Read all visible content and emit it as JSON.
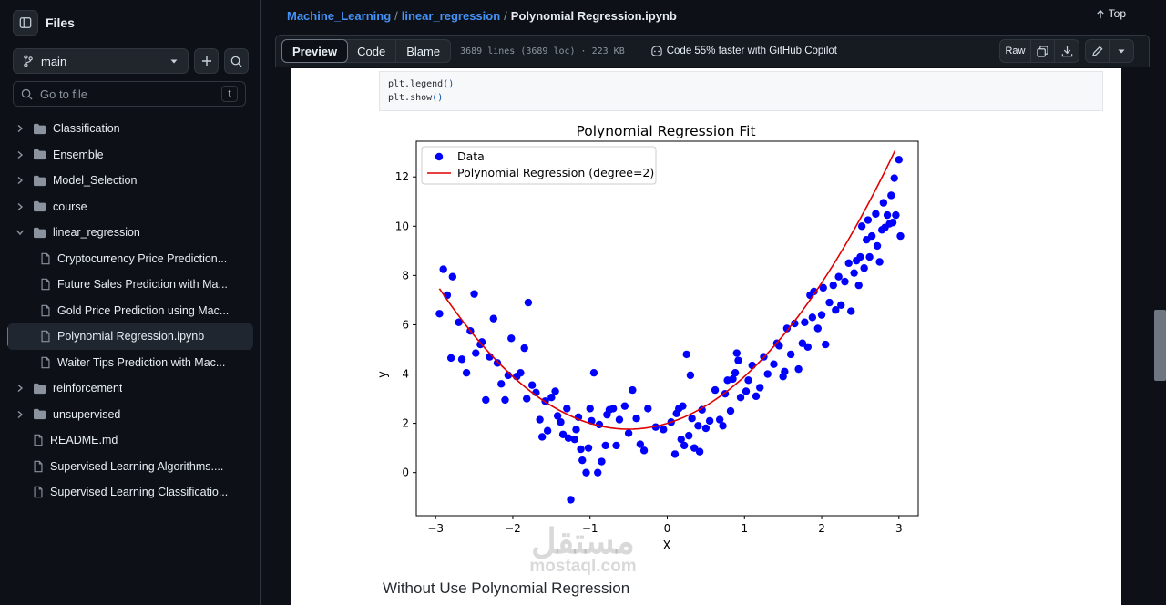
{
  "sidebar": {
    "title": "Files",
    "branch": "main",
    "go_to_file": "Go to file",
    "shortcut": "t",
    "tree": [
      {
        "label": "Classification",
        "type": "folder",
        "expanded": false,
        "depth": 0
      },
      {
        "label": "Ensemble",
        "type": "folder",
        "expanded": false,
        "depth": 0
      },
      {
        "label": "Model_Selection",
        "type": "folder",
        "expanded": false,
        "depth": 0
      },
      {
        "label": "course",
        "type": "folder",
        "expanded": false,
        "depth": 0
      },
      {
        "label": "linear_regression",
        "type": "folder",
        "expanded": true,
        "depth": 0
      },
      {
        "label": "Cryptocurrency Price Prediction...",
        "type": "file",
        "depth": 1
      },
      {
        "label": "Future Sales Prediction with Ma...",
        "type": "file",
        "depth": 1
      },
      {
        "label": "Gold Price Prediction using Mac...",
        "type": "file",
        "depth": 1
      },
      {
        "label": "Polynomial Regression.ipynb",
        "type": "file",
        "depth": 1,
        "active": true
      },
      {
        "label": "Waiter Tips Prediction with Mac...",
        "type": "file",
        "depth": 1
      },
      {
        "label": "reinforcement",
        "type": "folder",
        "expanded": false,
        "depth": 0
      },
      {
        "label": "unsupervised",
        "type": "folder",
        "expanded": false,
        "depth": 0
      },
      {
        "label": "README.md",
        "type": "file",
        "depth": 0
      },
      {
        "label": "Supervised Learning Algorithms....",
        "type": "file",
        "depth": 0
      },
      {
        "label": "Supervised Learning Classificatio...",
        "type": "file",
        "depth": 0
      }
    ]
  },
  "breadcrumb": {
    "repo": "Machine_Learning",
    "folder": "linear_regression",
    "file": "Polynomial Regression.ipynb",
    "separator": "/"
  },
  "top_label": "Top",
  "toolbar": {
    "tabs": [
      "Preview",
      "Code",
      "Blame"
    ],
    "meta": "3689 lines (3689 loc) · 223 KB",
    "copilot": "Code 55% faster with GitHub Copilot",
    "raw": "Raw"
  },
  "code": {
    "line1_name": "plt.legend",
    "line2_name": "plt.show",
    "parens": "()"
  },
  "next_heading": "Without Use Polynomial Regression",
  "watermark": {
    "arabic": "مستقل",
    "latin": "mostaql.com"
  },
  "colors": {
    "accent": "#4493f8",
    "data_points": "#0000ff",
    "fit_line": "#e00000"
  },
  "chart_data": {
    "type": "scatter",
    "title": "Polynomial Regression Fit",
    "xlabel": "X",
    "ylabel": "y",
    "xlim": [
      -3.25,
      3.25
    ],
    "ylim": [
      -1.75,
      13.45
    ],
    "xticks": [
      -3,
      -2,
      -1,
      0,
      1,
      2,
      3
    ],
    "xtick_labels": [
      "−3",
      "−2",
      "−1",
      "0",
      "1",
      "2",
      "3"
    ],
    "yticks": [
      0,
      2,
      4,
      6,
      8,
      10,
      12
    ],
    "ytick_labels": [
      "0",
      "2",
      "4",
      "6",
      "8",
      "10",
      "12"
    ],
    "legend_position": "top-left",
    "series": [
      {
        "name": "Data",
        "kind": "scatter",
        "color": "#0000ff",
        "points": [
          [
            -2.95,
            6.45
          ],
          [
            -2.9,
            8.25
          ],
          [
            -2.85,
            7.2
          ],
          [
            -2.8,
            4.65
          ],
          [
            -2.78,
            7.95
          ],
          [
            -2.7,
            6.1
          ],
          [
            -2.66,
            4.6
          ],
          [
            -2.6,
            4.05
          ],
          [
            -2.55,
            5.75
          ],
          [
            -2.5,
            7.25
          ],
          [
            -2.48,
            4.85
          ],
          [
            -2.42,
            5.2
          ],
          [
            -2.4,
            5.3
          ],
          [
            -2.35,
            2.95
          ],
          [
            -2.3,
            4.7
          ],
          [
            -2.25,
            6.25
          ],
          [
            -2.2,
            4.45
          ],
          [
            -2.15,
            3.6
          ],
          [
            -2.1,
            2.95
          ],
          [
            -2.06,
            3.95
          ],
          [
            -2.02,
            5.45
          ],
          [
            -1.95,
            3.9
          ],
          [
            -1.9,
            4.05
          ],
          [
            -1.85,
            5.05
          ],
          [
            -1.82,
            3.0
          ],
          [
            -1.8,
            6.9
          ],
          [
            -1.75,
            3.55
          ],
          [
            -1.7,
            3.25
          ],
          [
            -1.65,
            2.15
          ],
          [
            -1.62,
            1.45
          ],
          [
            -1.58,
            2.9
          ],
          [
            -1.55,
            1.7
          ],
          [
            -1.5,
            3.05
          ],
          [
            -1.45,
            3.3
          ],
          [
            -1.42,
            2.3
          ],
          [
            -1.38,
            2.05
          ],
          [
            -1.35,
            1.55
          ],
          [
            -1.3,
            2.6
          ],
          [
            -1.28,
            1.4
          ],
          [
            -1.25,
            -1.1
          ],
          [
            -1.2,
            1.35
          ],
          [
            -1.18,
            1.75
          ],
          [
            -1.15,
            2.25
          ],
          [
            -1.12,
            0.95
          ],
          [
            -1.1,
            0.5
          ],
          [
            -1.05,
            0.0
          ],
          [
            -1.02,
            1.0
          ],
          [
            -1.0,
            2.6
          ],
          [
            -0.98,
            2.1
          ],
          [
            -0.95,
            4.05
          ],
          [
            -0.9,
            0.0
          ],
          [
            -0.88,
            1.95
          ],
          [
            -0.85,
            0.45
          ],
          [
            -0.8,
            1.1
          ],
          [
            -0.78,
            2.35
          ],
          [
            -0.75,
            2.55
          ],
          [
            -0.7,
            2.6
          ],
          [
            -0.66,
            1.1
          ],
          [
            -0.62,
            2.15
          ],
          [
            -0.55,
            2.7
          ],
          [
            -0.5,
            1.6
          ],
          [
            -0.45,
            3.35
          ],
          [
            -0.4,
            2.2
          ],
          [
            -0.35,
            1.15
          ],
          [
            -0.3,
            0.9
          ],
          [
            -0.25,
            2.6
          ],
          [
            -0.15,
            1.85
          ],
          [
            -0.05,
            1.75
          ],
          [
            0.05,
            2.05
          ],
          [
            0.1,
            0.75
          ],
          [
            0.12,
            2.4
          ],
          [
            0.15,
            2.6
          ],
          [
            0.18,
            1.35
          ],
          [
            0.2,
            2.7
          ],
          [
            0.22,
            1.1
          ],
          [
            0.25,
            4.8
          ],
          [
            0.28,
            1.5
          ],
          [
            0.3,
            3.95
          ],
          [
            0.32,
            2.2
          ],
          [
            0.35,
            1.0
          ],
          [
            0.4,
            1.9
          ],
          [
            0.42,
            0.85
          ],
          [
            0.45,
            2.55
          ],
          [
            0.5,
            1.8
          ],
          [
            0.55,
            2.1
          ],
          [
            0.62,
            3.35
          ],
          [
            0.68,
            2.15
          ],
          [
            0.72,
            1.9
          ],
          [
            0.75,
            3.2
          ],
          [
            0.78,
            3.75
          ],
          [
            0.82,
            2.5
          ],
          [
            0.85,
            3.8
          ],
          [
            0.88,
            4.05
          ],
          [
            0.9,
            4.85
          ],
          [
            0.92,
            4.55
          ],
          [
            0.95,
            3.05
          ],
          [
            1.02,
            3.3
          ],
          [
            1.05,
            3.75
          ],
          [
            1.1,
            4.35
          ],
          [
            1.15,
            3.1
          ],
          [
            1.2,
            3.45
          ],
          [
            1.25,
            4.7
          ],
          [
            1.3,
            4.0
          ],
          [
            1.38,
            4.4
          ],
          [
            1.42,
            5.25
          ],
          [
            1.45,
            5.15
          ],
          [
            1.5,
            3.9
          ],
          [
            1.52,
            4.1
          ],
          [
            1.55,
            5.85
          ],
          [
            1.6,
            4.8
          ],
          [
            1.65,
            6.05
          ],
          [
            1.7,
            4.2
          ],
          [
            1.75,
            5.25
          ],
          [
            1.78,
            6.1
          ],
          [
            1.82,
            5.1
          ],
          [
            1.85,
            7.2
          ],
          [
            1.88,
            6.3
          ],
          [
            1.9,
            7.35
          ],
          [
            1.95,
            5.85
          ],
          [
            2.0,
            6.4
          ],
          [
            2.02,
            7.5
          ],
          [
            2.05,
            5.2
          ],
          [
            2.1,
            6.9
          ],
          [
            2.15,
            7.6
          ],
          [
            2.18,
            6.6
          ],
          [
            2.22,
            7.95
          ],
          [
            2.25,
            6.8
          ],
          [
            2.3,
            7.75
          ],
          [
            2.35,
            8.5
          ],
          [
            2.38,
            6.55
          ],
          [
            2.42,
            8.1
          ],
          [
            2.45,
            8.6
          ],
          [
            2.48,
            7.6
          ],
          [
            2.5,
            8.75
          ],
          [
            2.52,
            10.0
          ],
          [
            2.55,
            8.3
          ],
          [
            2.58,
            9.45
          ],
          [
            2.6,
            10.25
          ],
          [
            2.62,
            8.75
          ],
          [
            2.65,
            9.6
          ],
          [
            2.7,
            10.5
          ],
          [
            2.72,
            9.2
          ],
          [
            2.75,
            8.55
          ],
          [
            2.78,
            9.85
          ],
          [
            2.8,
            10.95
          ],
          [
            2.82,
            9.95
          ],
          [
            2.85,
            10.45
          ],
          [
            2.88,
            10.1
          ],
          [
            2.9,
            11.25
          ],
          [
            2.92,
            10.15
          ],
          [
            2.94,
            11.95
          ],
          [
            2.96,
            10.45
          ],
          [
            3.0,
            12.7
          ],
          [
            3.02,
            9.6
          ]
        ]
      },
      {
        "name": "Polynomial Regression (degree=2)",
        "kind": "line",
        "color": "#e00000",
        "equation": {
          "a": 0.95,
          "b": 0.95,
          "c": 2.0
        },
        "x_range": [
          -2.95,
          2.95
        ]
      }
    ]
  }
}
